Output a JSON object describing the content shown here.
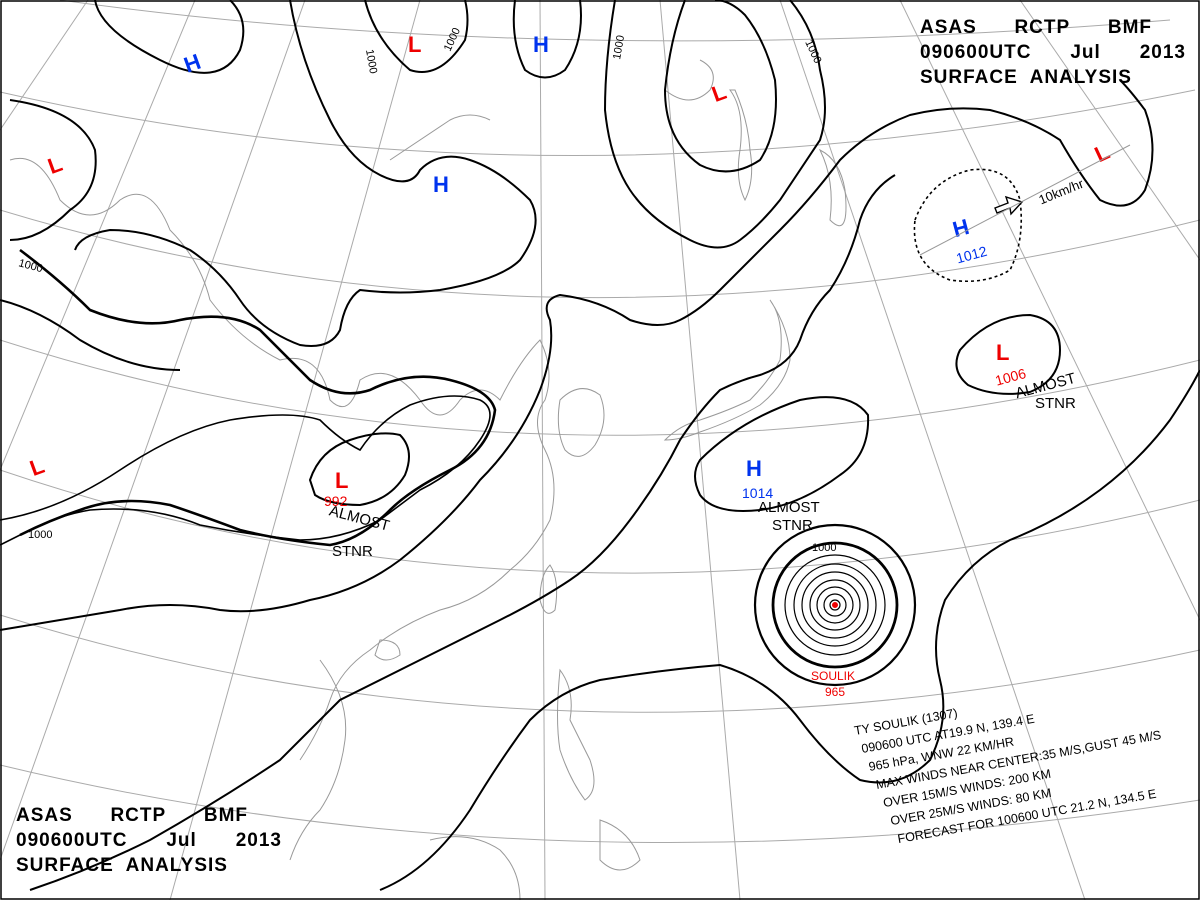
{
  "header_top": {
    "line1": [
      "ASAS",
      "RCTP",
      "BMF"
    ],
    "line2": [
      "090600UTC",
      "Jul",
      "2013"
    ],
    "line3": "SURFACE  ANALYSIS"
  },
  "header_bottom": {
    "line1": [
      "ASAS",
      "RCTP",
      "BMF"
    ],
    "line2": [
      "090600UTC",
      "Jul",
      "2013"
    ],
    "line3": "SURFACE  ANALYSIS"
  },
  "colors": {
    "high": "#0033ee",
    "low": "#ee0000",
    "line": "#000000",
    "coast": "#999999",
    "grid": "#aaaaaa"
  },
  "pressure_centers": {
    "h1": {
      "symbol": "H"
    },
    "h2": {
      "symbol": "H"
    },
    "h3": {
      "symbol": "H"
    },
    "h4": {
      "symbol": "H",
      "value": "1012"
    },
    "h5": {
      "symbol": "H",
      "value": "1014"
    },
    "l1": {
      "symbol": "L"
    },
    "l2": {
      "symbol": "L"
    },
    "l3": {
      "symbol": "L"
    },
    "l4": {
      "symbol": "L"
    },
    "l5": {
      "symbol": "L",
      "value": "1006"
    },
    "l6": {
      "symbol": "L",
      "value": "992"
    }
  },
  "isobar_labels": {
    "a": "1000",
    "b": "1000",
    "c": "1000",
    "d": "1000",
    "e": "1000",
    "f": "1000",
    "g": "1000"
  },
  "movement": {
    "label": "10km/hr"
  },
  "annotations": {
    "stnr_1006": [
      "ALMOST",
      "STNR"
    ],
    "stnr_1014": [
      "ALMOST",
      "STNR"
    ],
    "stnr_992": [
      "ALMOST",
      "STNR"
    ]
  },
  "typhoon": {
    "name": "SOULIK",
    "pressure": "965"
  },
  "typhoon_info": [
    "TY  SOULIK  (1307)",
    "090600 UTC  AT19.9 N, 139.4 E",
    "965 hPa, WNW  22 KM/HR",
    "MAX WINDS NEAR CENTER:35 M/S,GUST 45 M/S",
    "OVER 15M/S WINDS: 200 KM",
    "OVER 25M/S WINDS: 80 KM",
    "FORECAST FOR 100600 UTC 21.2 N, 134.5 E"
  ]
}
